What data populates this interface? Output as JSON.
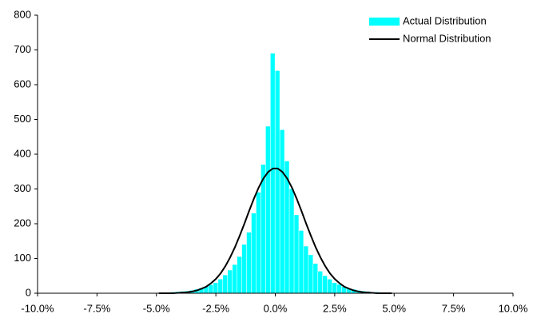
{
  "chart_data": {
    "type": "histogram",
    "bins": [
      -5.0,
      -4.8,
      -4.6,
      -4.4,
      -4.2,
      -4.0,
      -3.8,
      -3.6,
      -3.4,
      -3.2,
      -3.0,
      -2.8,
      -2.6,
      -2.4,
      -2.2,
      -2.0,
      -1.8,
      -1.6,
      -1.4,
      -1.2,
      -1.0,
      -0.8,
      -0.6,
      -0.4,
      -0.2,
      0.0,
      0.2,
      0.4,
      0.6,
      0.8,
      1.0,
      1.2,
      1.4,
      1.6,
      1.8,
      2.0,
      2.2,
      2.4,
      2.6,
      2.8,
      3.0,
      3.2,
      3.4,
      3.6,
      3.8,
      4.0,
      4.2,
      4.4,
      4.6,
      4.8,
      5.0
    ],
    "series": [
      {
        "name": "Actual Distribution",
        "color": "#00ffff",
        "values": [
          1,
          2,
          2,
          3,
          4,
          5,
          6,
          8,
          11,
          15,
          19,
          24,
          30,
          40,
          52,
          66,
          82,
          105,
          140,
          175,
          230,
          290,
          370,
          480,
          690,
          640,
          470,
          380,
          300,
          225,
          180,
          135,
          110,
          85,
          63,
          50,
          40,
          30,
          25,
          18,
          14,
          11,
          8,
          6,
          5,
          3,
          3,
          2,
          1,
          1
        ]
      },
      {
        "name": "Normal Distribution",
        "color": "#000000",
        "values": [
          0,
          0,
          0,
          0,
          1,
          2,
          3,
          5,
          8,
          13,
          19,
          29,
          41,
          57,
          78,
          103,
          132,
          165,
          200,
          237,
          272,
          304,
          330,
          349,
          359,
          359,
          349,
          330,
          304,
          272,
          237,
          200,
          165,
          132,
          103,
          78,
          57,
          41,
          29,
          19,
          13,
          8,
          5,
          3,
          2,
          1,
          0,
          0,
          0,
          0
        ]
      }
    ],
    "xlim": [
      -10,
      10
    ],
    "xticks": [
      {
        "value": -10,
        "label": "-10.0%"
      },
      {
        "value": -7.5,
        "label": "-7.5%"
      },
      {
        "value": -5,
        "label": "-5.0%"
      },
      {
        "value": -2.5,
        "label": "-2.5%"
      },
      {
        "value": 0,
        "label": "0.0%"
      },
      {
        "value": 2.5,
        "label": "2.5%"
      },
      {
        "value": 5,
        "label": "5.0%"
      },
      {
        "value": 7.5,
        "label": "7.5%"
      },
      {
        "value": 10,
        "label": "10.0%"
      }
    ],
    "ylim": [
      0,
      800
    ],
    "yticks": [
      0,
      100,
      200,
      300,
      400,
      500,
      600,
      700,
      800
    ],
    "legend": "top-right"
  }
}
